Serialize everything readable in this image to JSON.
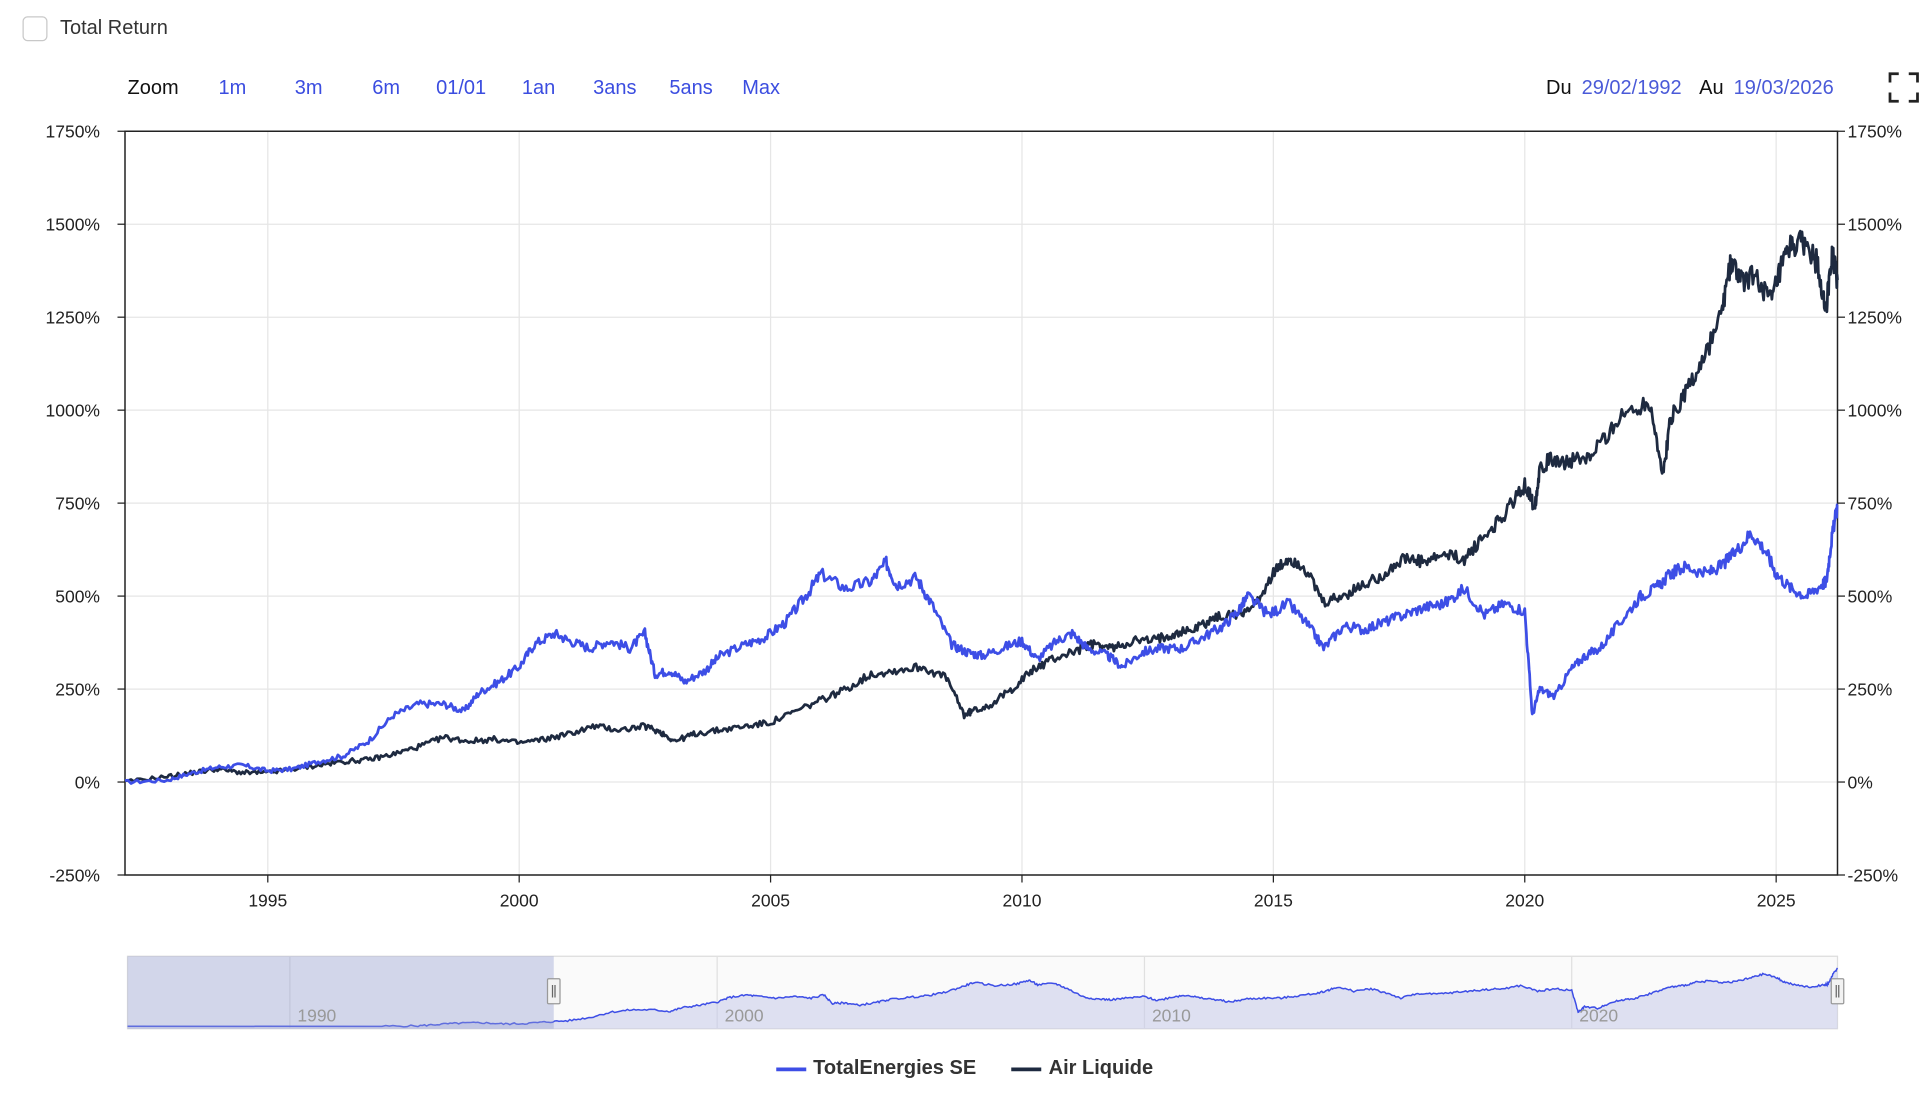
{
  "toolbar": {
    "checkbox_label": "Total Return",
    "zoom_label": "Zoom",
    "zoom_buttons": [
      "1m",
      "3m",
      "6m",
      "01/01",
      "1an",
      "3ans",
      "5ans",
      "Max"
    ],
    "from_label": "Du",
    "from_value": "29/02/1992",
    "to_label": "Au",
    "to_value": "19/03/2026"
  },
  "colors": {
    "total": "#3d4ee6",
    "air": "#1e2a40",
    "grid": "#e6e6e6",
    "navigator_fill": "#c7cbea",
    "navigator_mask": "rgba(150,160,210,0.40)"
  },
  "chart_data": {
    "type": "line",
    "title": "",
    "xlabel": "",
    "ylabel": "",
    "xlim": [
      1992.16,
      2026.22
    ],
    "ylim": [
      -250,
      1750
    ],
    "y_ticks": [
      -250,
      0,
      250,
      500,
      750,
      1000,
      1250,
      1500,
      1750
    ],
    "y_tick_labels": [
      "-250%",
      "0%",
      "250%",
      "500%",
      "750%",
      "1000%",
      "1250%",
      "1500%",
      "1750%"
    ],
    "x_ticks": [
      1995,
      2000,
      2005,
      2010,
      2015,
      2020,
      2025
    ],
    "x_tick_labels": [
      "1995",
      "2000",
      "2005",
      "2010",
      "2015",
      "2020",
      "2025"
    ],
    "grid": true,
    "legend_position": "bottom-center",
    "series": [
      {
        "name": "TotalEnergies SE",
        "color": "#3d4ee6",
        "x": [
          1992.16,
          1993.0,
          1993.5,
          1994.0,
          1994.5,
          1995.0,
          1995.5,
          1996.0,
          1996.5,
          1997.0,
          1997.5,
          1998.0,
          1998.5,
          1998.9,
          1999.2,
          1999.6,
          2000.0,
          2000.3,
          2000.7,
          2001.0,
          2001.4,
          2001.8,
          2002.2,
          2002.5,
          2002.7,
          2003.0,
          2003.3,
          2003.7,
          2004.0,
          2004.5,
          2004.9,
          2005.3,
          2005.7,
          2006.0,
          2006.5,
          2007.0,
          2007.3,
          2007.5,
          2007.9,
          2008.2,
          2008.6,
          2008.9,
          2009.2,
          2009.6,
          2010.0,
          2010.3,
          2010.7,
          2011.0,
          2011.3,
          2011.7,
          2012.0,
          2012.4,
          2012.8,
          2013.2,
          2013.6,
          2014.0,
          2014.3,
          2014.5,
          2014.9,
          2015.3,
          2015.7,
          2016.0,
          2016.4,
          2016.8,
          2017.2,
          2017.6,
          2018.0,
          2018.4,
          2018.8,
          2019.2,
          2019.6,
          2020.0,
          2020.15,
          2020.3,
          2020.6,
          2020.9,
          2021.2,
          2021.5,
          2021.9,
          2022.3,
          2022.6,
          2022.9,
          2023.2,
          2023.6,
          2023.9,
          2024.2,
          2024.5,
          2024.8,
          2025.0,
          2025.3,
          2025.6,
          2025.9,
          2026.0,
          2026.1,
          2026.22
        ],
        "values": [
          0,
          5,
          25,
          40,
          45,
          30,
          35,
          55,
          70,
          110,
          180,
          210,
          210,
          190,
          240,
          270,
          310,
          370,
          400,
          380,
          360,
          380,
          360,
          400,
          290,
          300,
          270,
          300,
          340,
          370,
          390,
          430,
          500,
          560,
          520,
          540,
          590,
          530,
          550,
          480,
          370,
          350,
          340,
          360,
          380,
          330,
          380,
          400,
          360,
          340,
          310,
          350,
          360,
          360,
          390,
          420,
          460,
          500,
          450,
          480,
          420,
          360,
          420,
          410,
          430,
          450,
          470,
          480,
          520,
          450,
          480,
          460,
          180,
          250,
          230,
          300,
          340,
          360,
          430,
          500,
          520,
          560,
          580,
          560,
          580,
          620,
          670,
          620,
          560,
          520,
          500,
          530,
          540,
          650,
          745
        ]
      },
      {
        "name": "Air Liquide",
        "color": "#1e2a40",
        "x": [
          1992.16,
          1993.0,
          1993.5,
          1994.0,
          1994.5,
          1995.0,
          1995.5,
          1996.0,
          1996.5,
          1997.0,
          1997.5,
          1998.0,
          1998.5,
          1999.0,
          1999.5,
          2000.0,
          2000.5,
          2001.0,
          2001.5,
          2002.0,
          2002.5,
          2002.8,
          2003.1,
          2003.5,
          2004.0,
          2004.5,
          2005.0,
          2005.5,
          2006.0,
          2006.5,
          2007.0,
          2007.5,
          2008.0,
          2008.5,
          2008.85,
          2009.0,
          2009.4,
          2009.8,
          2010.2,
          2010.6,
          2011.0,
          2011.4,
          2011.8,
          2012.2,
          2012.6,
          2013.0,
          2013.4,
          2013.8,
          2014.2,
          2014.6,
          2015.0,
          2015.3,
          2015.6,
          2016.0,
          2016.4,
          2016.8,
          2017.2,
          2017.6,
          2018.0,
          2018.4,
          2018.8,
          2019.2,
          2019.6,
          2020.0,
          2020.2,
          2020.3,
          2020.6,
          2020.9,
          2021.3,
          2021.7,
          2022.1,
          2022.5,
          2022.75,
          2022.9,
          2023.2,
          2023.5,
          2023.9,
          2024.1,
          2024.3,
          2024.6,
          2024.9,
          2025.1,
          2025.3,
          2025.55,
          2025.8,
          2026.0,
          2026.12,
          2026.22
        ],
        "values": [
          0,
          15,
          25,
          35,
          25,
          25,
          35,
          45,
          55,
          60,
          75,
          95,
          120,
          110,
          115,
          105,
          115,
          130,
          150,
          140,
          150,
          135,
          110,
          130,
          140,
          150,
          160,
          190,
          220,
          250,
          290,
          300,
          310,
          280,
          180,
          190,
          210,
          250,
          300,
          330,
          350,
          370,
          360,
          380,
          380,
          400,
          410,
          440,
          450,
          470,
          560,
          600,
          580,
          480,
          500,
          530,
          560,
          600,
          590,
          610,
          600,
          660,
          720,
          800,
          740,
          850,
          870,
          860,
          870,
          950,
          1000,
          1020,
          820,
          980,
          1050,
          1120,
          1250,
          1400,
          1350,
          1360,
          1290,
          1380,
          1440,
          1450,
          1400,
          1280,
          1420,
          1350
        ]
      }
    ],
    "navigator": {
      "x_tick_labels": [
        "1990",
        "2000",
        "2010",
        "2020"
      ],
      "x_ticks": [
        1990,
        2000,
        2010,
        2020
      ],
      "xlim": [
        1986.2,
        2026.22
      ],
      "selected_range": [
        1992.16,
        2026.22
      ]
    }
  }
}
